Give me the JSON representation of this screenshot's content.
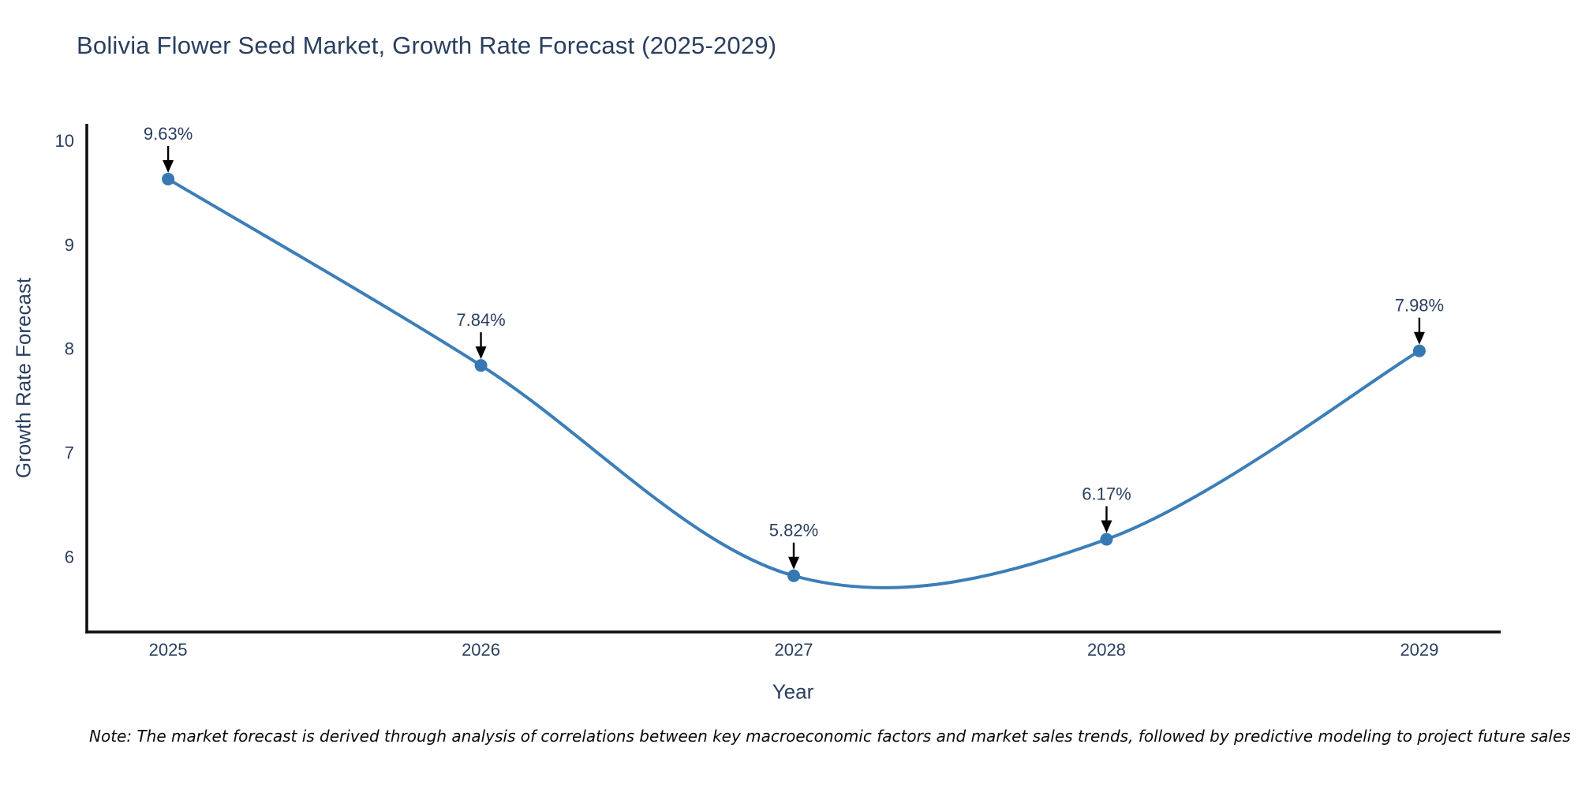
{
  "title": "Bolivia Flower Seed Market, Growth Rate Forecast (2025-2029)",
  "note": "Note: The market forecast is derived through analysis of correlations between key macroeconomic factors and market sales trends, followed by predictive modeling to project future sales",
  "chart_data": {
    "type": "line",
    "title": "Bolivia Flower Seed Market, Growth Rate Forecast (2025-2029)",
    "x": [
      2025,
      2026,
      2027,
      2028,
      2029
    ],
    "series": [
      {
        "name": "Growth Rate Forecast",
        "values": [
          9.63,
          7.84,
          5.82,
          6.17,
          7.98
        ]
      }
    ],
    "point_labels": [
      "9.63%",
      "7.84%",
      "5.82%",
      "6.17%",
      "7.98%"
    ],
    "xlabel": "Year",
    "ylabel": "Growth Rate Forecast",
    "yticks": [
      6,
      7,
      8,
      9,
      10
    ],
    "xlim": [
      2024.74,
      2029.26
    ],
    "ylim": [
      5.28,
      10.16
    ],
    "grid": false,
    "legend": "none",
    "line_shape": "spline",
    "colors": {
      "line": "#3c7eb8",
      "marker": "#3578b2",
      "axis": "#0b0b0b",
      "text": "#2a3f5f",
      "arrow": "#000000",
      "background": "#ffffff"
    }
  }
}
